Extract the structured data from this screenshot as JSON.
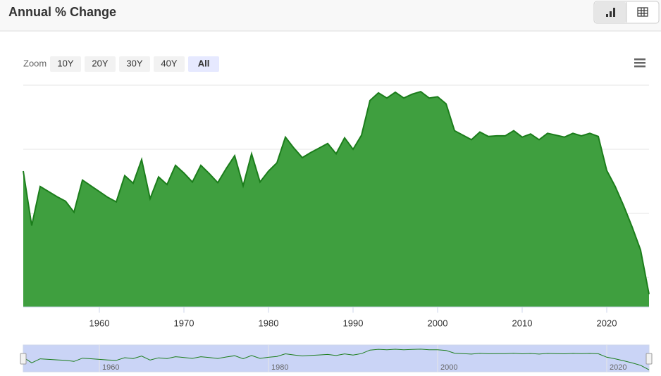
{
  "chart_data": {
    "type": "area",
    "title": "Annual % Change",
    "zoom": {
      "label": "Zoom",
      "buttons": [
        "10Y",
        "20Y",
        "30Y",
        "40Y",
        "All"
      ],
      "selected": 4
    },
    "x": [
      1951,
      1952,
      1953,
      1954,
      1955,
      1956,
      1957,
      1958,
      1959,
      1960,
      1961,
      1962,
      1963,
      1964,
      1965,
      1966,
      1967,
      1968,
      1969,
      1970,
      1971,
      1972,
      1973,
      1974,
      1975,
      1976,
      1977,
      1978,
      1979,
      1980,
      1981,
      1982,
      1983,
      1984,
      1985,
      1986,
      1987,
      1988,
      1989,
      1990,
      1991,
      1992,
      1993,
      1994,
      1995,
      1996,
      1997,
      1998,
      1999,
      2000,
      2001,
      2002,
      2003,
      2004,
      2005,
      2006,
      2007,
      2008,
      2009,
      2010,
      2011,
      2012,
      2013,
      2014,
      2015,
      2016,
      2017,
      2018,
      2019,
      2020,
      2021,
      2022,
      2023,
      2024,
      2025
    ],
    "values": [
      1.66,
      0.81,
      1.42,
      1.34,
      1.26,
      1.19,
      1.02,
      1.52,
      1.43,
      1.34,
      1.25,
      1.18,
      1.59,
      1.47,
      1.84,
      1.23,
      1.57,
      1.45,
      1.75,
      1.63,
      1.49,
      1.75,
      1.62,
      1.48,
      1.7,
      1.9,
      1.43,
      1.93,
      1.49,
      1.66,
      1.79,
      2.19,
      2.02,
      1.87,
      1.95,
      2.02,
      2.09,
      1.93,
      2.18,
      2.0,
      2.22,
      2.76,
      2.88,
      2.8,
      2.89,
      2.8,
      2.86,
      2.9,
      2.8,
      2.82,
      2.71,
      2.29,
      2.22,
      2.15,
      2.27,
      2.2,
      2.21,
      2.21,
      2.29,
      2.19,
      2.24,
      2.15,
      2.25,
      2.22,
      2.19,
      2.25,
      2.21,
      2.25,
      2.2,
      1.67,
      1.42,
      1.12,
      0.79,
      0.43,
      -0.26
    ],
    "xlim": [
      1951,
      2025
    ],
    "ylim": [
      -0.46,
      3.0
    ],
    "xticks": [
      1960,
      1970,
      1980,
      1990,
      2000,
      2010,
      2020
    ],
    "ygrid": [
      0,
      1,
      2,
      3
    ],
    "navigator_ticks": [
      1960,
      1980,
      2000,
      2020
    ],
    "color": "#3f9f3f",
    "line_color": "#1b7d1b"
  }
}
